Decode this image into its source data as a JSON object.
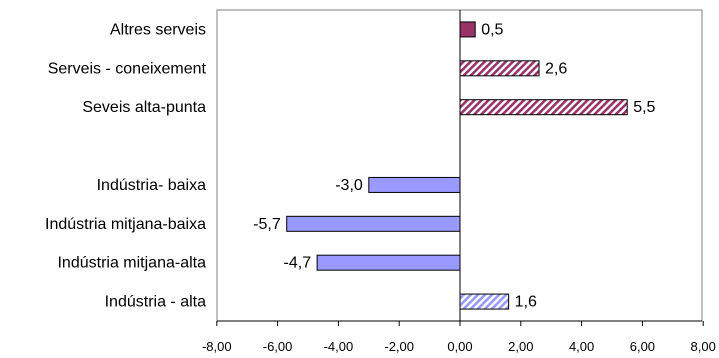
{
  "chart_data": {
    "type": "bar",
    "orientation": "horizontal",
    "categories": [
      "Altres serveis",
      "Serveis - coneixement",
      "Seveis alta-punta",
      "",
      "Indústria- baixa",
      "Indústria mitjana-baixa",
      "Indústria mitjana-alta",
      "Indústria - alta"
    ],
    "values": [
      0.5,
      2.6,
      5.5,
      null,
      -3.0,
      -5.7,
      -4.7,
      1.6
    ],
    "data_labels": [
      "0,5",
      "2,6",
      "5,5",
      "",
      "-3,0",
      "-5,7",
      "-4,7",
      "1,6"
    ],
    "bar_styles": [
      "solid",
      "hatch-red",
      "hatch-red",
      "none",
      "solid",
      "solid",
      "solid",
      "hatch-blue"
    ],
    "bar_colors": [
      "#993366",
      "#993366",
      "#993366",
      "",
      "#9999ff",
      "#9999ff",
      "#9999ff",
      "#9999ff"
    ],
    "xlim": [
      -8,
      8
    ],
    "x_ticks": [
      -8,
      -6,
      -4,
      -2,
      0,
      2,
      4,
      6,
      8
    ],
    "x_tick_labels": [
      "-8,00",
      "-6,00",
      "-4,00",
      "-2,00",
      "0,00",
      "2,00",
      "4,00",
      "6,00",
      "8,00"
    ],
    "title": "",
    "xlabel": "",
    "ylabel": "",
    "grid": false,
    "legend": "none"
  }
}
